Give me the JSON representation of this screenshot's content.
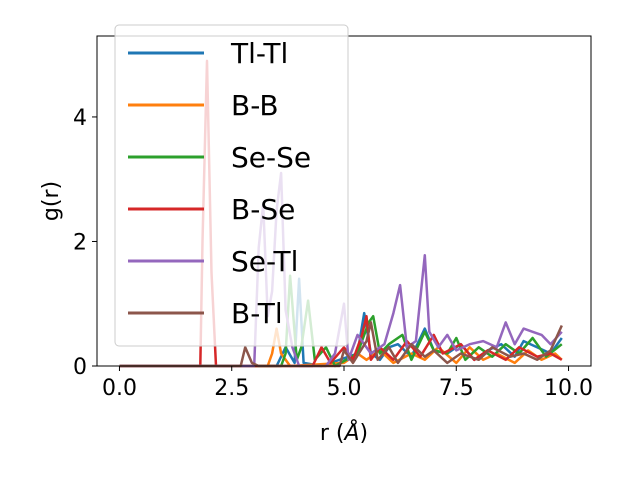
{
  "chart_data": {
    "type": "line",
    "xlabel": "r (",
    "xlabel_unit": "Å",
    "xlabel_close": ")",
    "ylabel": "g(r)",
    "xlim": [
      -0.5,
      10.5
    ],
    "ylim": [
      0,
      5.3
    ],
    "xticks": [
      0.0,
      2.5,
      5.0,
      7.5,
      10.0
    ],
    "xtick_labels": [
      "0.0",
      "2.5",
      "5.0",
      "7.5",
      "10.0"
    ],
    "yticks": [
      0,
      2,
      4
    ],
    "ytick_labels": [
      "0",
      "2",
      "4"
    ],
    "grid": false,
    "legend_position": "upper-left",
    "series": [
      {
        "name": "Tl-Tl",
        "color": "#1f77b4",
        "points": [
          [
            0,
            0
          ],
          [
            3.5,
            0
          ],
          [
            3.7,
            0.3
          ],
          [
            3.9,
            0.05
          ],
          [
            4.0,
            1.4
          ],
          [
            4.1,
            0.05
          ],
          [
            4.5,
            0
          ],
          [
            4.9,
            0.1
          ],
          [
            5.3,
            0.2
          ],
          [
            5.45,
            0.85
          ],
          [
            5.6,
            0.2
          ],
          [
            5.8,
            0.1
          ],
          [
            6.0,
            0.3
          ],
          [
            6.2,
            0.35
          ],
          [
            6.5,
            0.15
          ],
          [
            6.8,
            0.6
          ],
          [
            7.0,
            0.25
          ],
          [
            7.3,
            0.2
          ],
          [
            7.6,
            0.35
          ],
          [
            7.9,
            0.1
          ],
          [
            8.2,
            0.25
          ],
          [
            8.5,
            0.35
          ],
          [
            8.8,
            0.15
          ],
          [
            9.0,
            0.4
          ],
          [
            9.3,
            0.3
          ],
          [
            9.6,
            0.2
          ],
          [
            9.85,
            0.45
          ]
        ]
      },
      {
        "name": "B-B",
        "color": "#ff7f0e",
        "points": [
          [
            0,
            0
          ],
          [
            3.3,
            0
          ],
          [
            3.4,
            0.2
          ],
          [
            3.5,
            0.6
          ],
          [
            3.6,
            0.2
          ],
          [
            3.8,
            0
          ],
          [
            5.0,
            0.05
          ],
          [
            5.3,
            0.2
          ],
          [
            5.5,
            0.1
          ],
          [
            5.8,
            0.25
          ],
          [
            6.1,
            0.05
          ],
          [
            6.5,
            0.2
          ],
          [
            6.8,
            0.1
          ],
          [
            7.1,
            0.3
          ],
          [
            7.5,
            0.05
          ],
          [
            7.8,
            0.3
          ],
          [
            8.1,
            0.1
          ],
          [
            8.4,
            0.2
          ],
          [
            8.8,
            0.05
          ],
          [
            9.1,
            0.25
          ],
          [
            9.4,
            0.1
          ],
          [
            9.7,
            0.2
          ],
          [
            9.85,
            0.1
          ]
        ]
      },
      {
        "name": "Se-Se",
        "color": "#2ca02c",
        "points": [
          [
            0,
            0
          ],
          [
            3.6,
            0
          ],
          [
            3.7,
            0.2
          ],
          [
            3.8,
            1.45
          ],
          [
            3.95,
            0.1
          ],
          [
            4.05,
            0.3
          ],
          [
            4.2,
            1.05
          ],
          [
            4.35,
            0.1
          ],
          [
            4.6,
            0.3
          ],
          [
            4.8,
            0
          ],
          [
            5.3,
            0.2
          ],
          [
            5.55,
            0.7
          ],
          [
            5.65,
            0.8
          ],
          [
            5.8,
            0.2
          ],
          [
            6.0,
            0.35
          ],
          [
            6.3,
            0.5
          ],
          [
            6.5,
            0.1
          ],
          [
            6.8,
            0.55
          ],
          [
            7.0,
            0.25
          ],
          [
            7.3,
            0.2
          ],
          [
            7.5,
            0.45
          ],
          [
            7.7,
            0.1
          ],
          [
            8.0,
            0.3
          ],
          [
            8.3,
            0.15
          ],
          [
            8.6,
            0.35
          ],
          [
            8.9,
            0.2
          ],
          [
            9.2,
            0.45
          ],
          [
            9.5,
            0.15
          ],
          [
            9.85,
            0.35
          ]
        ]
      },
      {
        "name": "B-Se",
        "color": "#d62728",
        "points": [
          [
            0,
            0
          ],
          [
            1.8,
            0
          ],
          [
            1.85,
            2.0
          ],
          [
            1.95,
            4.9
          ],
          [
            2.05,
            1.5
          ],
          [
            2.15,
            0
          ],
          [
            4.3,
            0
          ],
          [
            4.5,
            0.3
          ],
          [
            4.7,
            0.05
          ],
          [
            5.0,
            0.3
          ],
          [
            5.2,
            0.1
          ],
          [
            5.4,
            0.5
          ],
          [
            5.5,
            0.8
          ],
          [
            5.6,
            0.1
          ],
          [
            5.8,
            0.3
          ],
          [
            6.1,
            0.1
          ],
          [
            6.4,
            0.4
          ],
          [
            6.7,
            0.15
          ],
          [
            7.0,
            0.5
          ],
          [
            7.2,
            0.2
          ],
          [
            7.6,
            0.35
          ],
          [
            7.9,
            0.1
          ],
          [
            8.2,
            0.25
          ],
          [
            8.6,
            0.1
          ],
          [
            8.9,
            0.3
          ],
          [
            9.3,
            0.15
          ],
          [
            9.6,
            0.2
          ],
          [
            9.85,
            0.1
          ]
        ]
      },
      {
        "name": "Se-Tl",
        "color": "#9467bd",
        "points": [
          [
            0,
            0
          ],
          [
            3.0,
            0
          ],
          [
            3.1,
            1.9
          ],
          [
            3.2,
            2.6
          ],
          [
            3.3,
            0.8
          ],
          [
            3.4,
            1.2
          ],
          [
            3.5,
            2.5
          ],
          [
            3.6,
            3.1
          ],
          [
            3.7,
            0.9
          ],
          [
            3.85,
            0.3
          ],
          [
            4.0,
            0
          ],
          [
            4.6,
            0
          ],
          [
            4.8,
            0.2
          ],
          [
            5.0,
            1.0
          ],
          [
            5.1,
            0.1
          ],
          [
            5.3,
            0.5
          ],
          [
            5.6,
            0.2
          ],
          [
            5.9,
            0.35
          ],
          [
            6.1,
            0.85
          ],
          [
            6.25,
            1.3
          ],
          [
            6.4,
            0.3
          ],
          [
            6.6,
            0.4
          ],
          [
            6.8,
            1.78
          ],
          [
            6.9,
            0.55
          ],
          [
            7.1,
            0.3
          ],
          [
            7.3,
            0.5
          ],
          [
            7.5,
            0.25
          ],
          [
            7.8,
            0.35
          ],
          [
            8.1,
            0.4
          ],
          [
            8.4,
            0.3
          ],
          [
            8.6,
            0.7
          ],
          [
            8.8,
            0.35
          ],
          [
            9.0,
            0.6
          ],
          [
            9.2,
            0.55
          ],
          [
            9.4,
            0.5
          ],
          [
            9.6,
            0.35
          ],
          [
            9.85,
            0.55
          ]
        ]
      },
      {
        "name": "B-Tl",
        "color": "#8c564b",
        "points": [
          [
            0,
            0
          ],
          [
            2.7,
            0
          ],
          [
            2.8,
            0.3
          ],
          [
            2.95,
            0.05
          ],
          [
            3.1,
            0
          ],
          [
            4.9,
            0
          ],
          [
            5.0,
            0.25
          ],
          [
            5.2,
            0.05
          ],
          [
            5.5,
            0.4
          ],
          [
            5.6,
            0.7
          ],
          [
            5.75,
            0.1
          ],
          [
            6.0,
            0.3
          ],
          [
            6.2,
            0.05
          ],
          [
            6.5,
            0.35
          ],
          [
            6.8,
            0.15
          ],
          [
            7.0,
            0.25
          ],
          [
            7.3,
            0.05
          ],
          [
            7.6,
            0.2
          ],
          [
            8.0,
            0.1
          ],
          [
            8.3,
            0.3
          ],
          [
            8.7,
            0.15
          ],
          [
            9.0,
            0.2
          ],
          [
            9.3,
            0.1
          ],
          [
            9.6,
            0.25
          ],
          [
            9.85,
            0.65
          ]
        ]
      }
    ]
  }
}
